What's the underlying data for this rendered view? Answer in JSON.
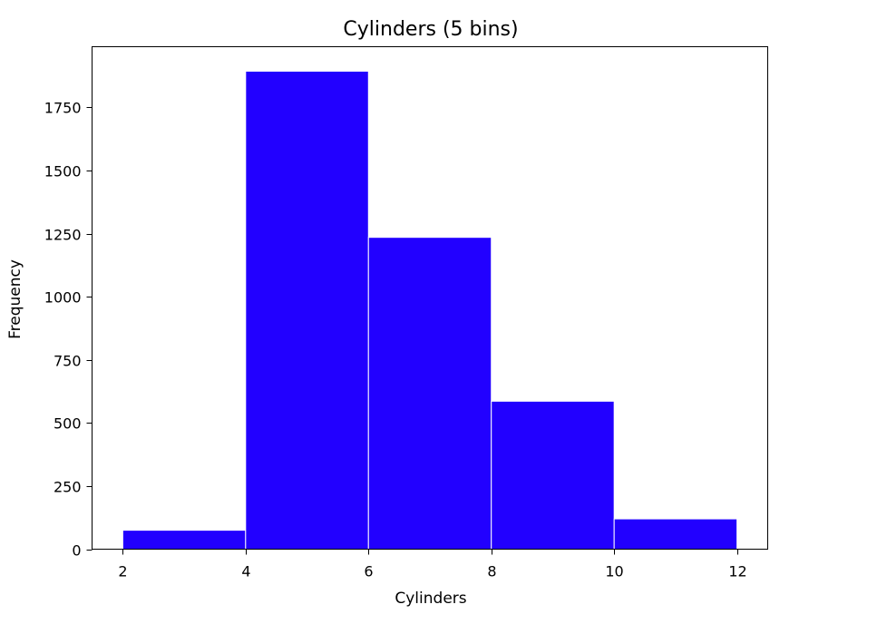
{
  "chart_data": {
    "type": "bar",
    "title": "Cylinders (5 bins)",
    "xlabel": "Cylinders",
    "ylabel": "Frequency",
    "bin_edges": [
      2,
      4,
      6,
      8,
      10,
      12
    ],
    "values": [
      75,
      1893,
      1235,
      586,
      120
    ],
    "xlim": [
      1.5,
      12.5
    ],
    "ylim": [
      0,
      1990
    ],
    "xticks": [
      2,
      4,
      6,
      8,
      10,
      12
    ],
    "yticks": [
      0,
      250,
      500,
      750,
      1000,
      1250,
      1500,
      1750
    ],
    "bar_color": "#2200ff",
    "grid": false,
    "legend": "none"
  }
}
